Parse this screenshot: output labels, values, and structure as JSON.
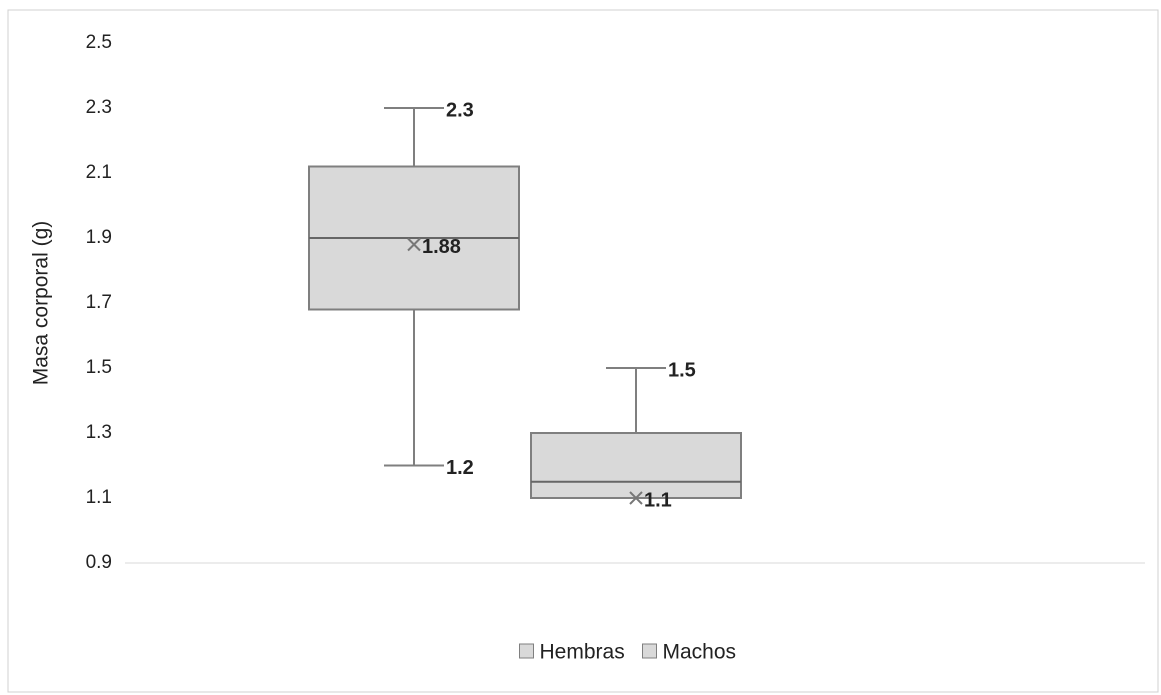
{
  "chart_data": {
    "type": "box",
    "y_label": "Masa corporal (g)",
    "ylim": [
      0.9,
      2.5
    ],
    "yticks": [
      0.9,
      1.1,
      1.3,
      1.5,
      1.7,
      1.9,
      2.1,
      2.3,
      2.5
    ],
    "grid": false,
    "legend": "bottom",
    "series": [
      {
        "name": "Hembras",
        "color": "#d9d9d9",
        "min": 1.2,
        "q1": 1.68,
        "median": 1.9,
        "q3": 2.12,
        "max": 2.3,
        "mean": 1.88,
        "labels": [
          "max",
          "mean",
          "min"
        ]
      },
      {
        "name": "Machos",
        "color": "#d9d9d9",
        "min": 1.1,
        "q1": 1.1,
        "median": 1.15,
        "q3": 1.3,
        "max": 1.5,
        "mean": 1.1,
        "labels": [
          "max",
          "mean"
        ]
      }
    ]
  }
}
